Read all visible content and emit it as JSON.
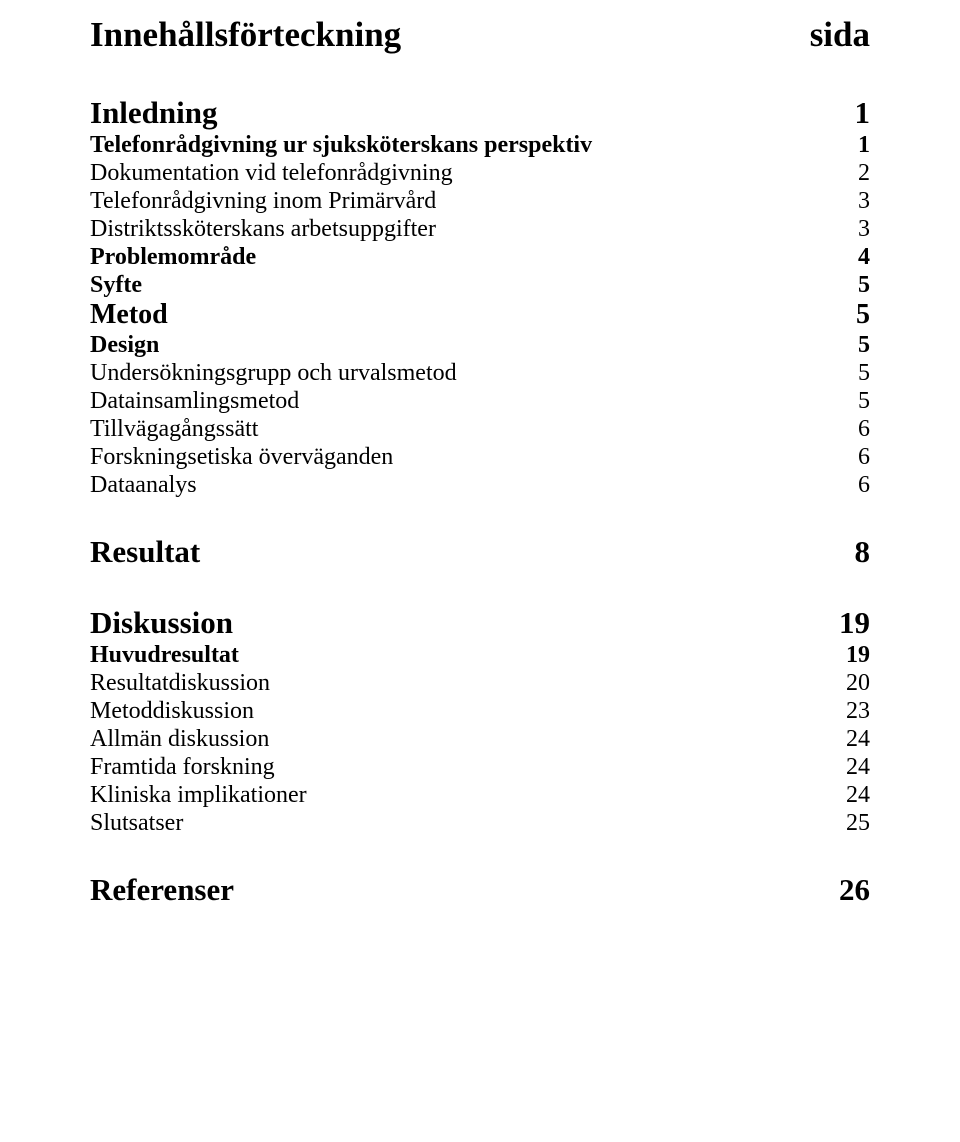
{
  "title": {
    "label": "Innehållsförteckning",
    "num": "sida"
  },
  "toc": [
    {
      "cls": "h1",
      "label": "Inledning",
      "num": "1"
    },
    {
      "cls": "h2",
      "label": "Telefonrådgivning ur sjuksköterskans perspektiv",
      "num": "1"
    },
    {
      "cls": "body",
      "label": "Dokumentation vid telefonrådgivning",
      "num": "2"
    },
    {
      "cls": "body",
      "label": "Telefonrådgivning inom Primärvård",
      "num": "3"
    },
    {
      "cls": "body",
      "label": "Distriktssköterskans arbetsuppgifter",
      "num": "3"
    },
    {
      "cls": "h2",
      "label": "Problemområde",
      "num": "4"
    },
    {
      "cls": "h2",
      "label": "Syfte",
      "num": "5"
    },
    {
      "cls": "h15",
      "label": "Metod",
      "num": "5"
    },
    {
      "cls": "h2",
      "label": "Design",
      "num": "5"
    },
    {
      "cls": "body",
      "label": "Undersökningsgrupp och urvalsmetod",
      "num": "5"
    },
    {
      "cls": "body",
      "label": "Datainsamlingsmetod",
      "num": "5"
    },
    {
      "cls": "body",
      "label": "Tillvägagångssätt",
      "num": "6"
    },
    {
      "cls": "body",
      "label": "Forskningsetiska överväganden",
      "num": "6"
    },
    {
      "cls": "body",
      "label": "Dataanalys",
      "num": "6"
    }
  ],
  "resultat": {
    "label": "Resultat",
    "num": "8"
  },
  "diskussion": {
    "label": "Diskussion",
    "num": "19"
  },
  "disk_sub": [
    {
      "cls": "h2",
      "label": "Huvudresultat",
      "num": "19"
    },
    {
      "cls": "body",
      "label": "Resultatdiskussion",
      "num": "20"
    },
    {
      "cls": "body",
      "label": "Metoddiskussion",
      "num": "23"
    },
    {
      "cls": "body",
      "label": "Allmän diskussion",
      "num": "24"
    },
    {
      "cls": "body",
      "label": "Framtida forskning",
      "num": "24"
    },
    {
      "cls": "body",
      "label": "Kliniska implikationer",
      "num": "24"
    },
    {
      "cls": "body",
      "label": "Slutsatser",
      "num": "25"
    }
  ],
  "referenser": {
    "label": "Referenser",
    "num": "26"
  },
  "layout": {
    "lineHeight_body": 28,
    "lineHeight_h1": 37,
    "lineHeight_h15": 32,
    "lineHeight_h2": 28,
    "lineHeight_title": 42
  }
}
